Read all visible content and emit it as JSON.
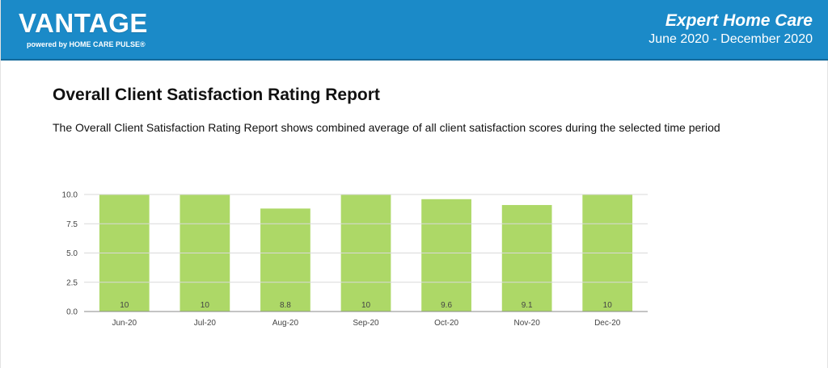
{
  "header": {
    "brand": "VANTAGE",
    "brand_sub": "powered by HOME CARE PULSE®",
    "company": "Expert Home Care",
    "period": "June 2020 - December 2020"
  },
  "report": {
    "title": "Overall Client Satisfaction Rating Report",
    "description": "The Overall Client Satisfaction Rating Report shows combined average of all client satisfaction scores during the selected time period"
  },
  "colors": {
    "header_bg": "#1b8ac8",
    "bar": "#add867",
    "grid": "#d9d9d9",
    "axis": "#888888"
  },
  "chart_data": {
    "type": "bar",
    "categories": [
      "Jun-20",
      "Jul-20",
      "Aug-20",
      "Sep-20",
      "Oct-20",
      "Nov-20",
      "Dec-20"
    ],
    "values": [
      10,
      10,
      8.8,
      10,
      9.6,
      9.1,
      10
    ],
    "value_labels": [
      "10",
      "10",
      "8.8",
      "10",
      "9.6",
      "9.1",
      "10"
    ],
    "title": "",
    "xlabel": "",
    "ylabel": "",
    "ylim": [
      0,
      10
    ],
    "yticks": [
      0,
      2.5,
      5,
      7.5,
      10
    ],
    "ytick_labels": [
      "0.0",
      "2.5",
      "5.0",
      "7.5",
      "10.0"
    ],
    "grid": true,
    "legend": "none"
  }
}
